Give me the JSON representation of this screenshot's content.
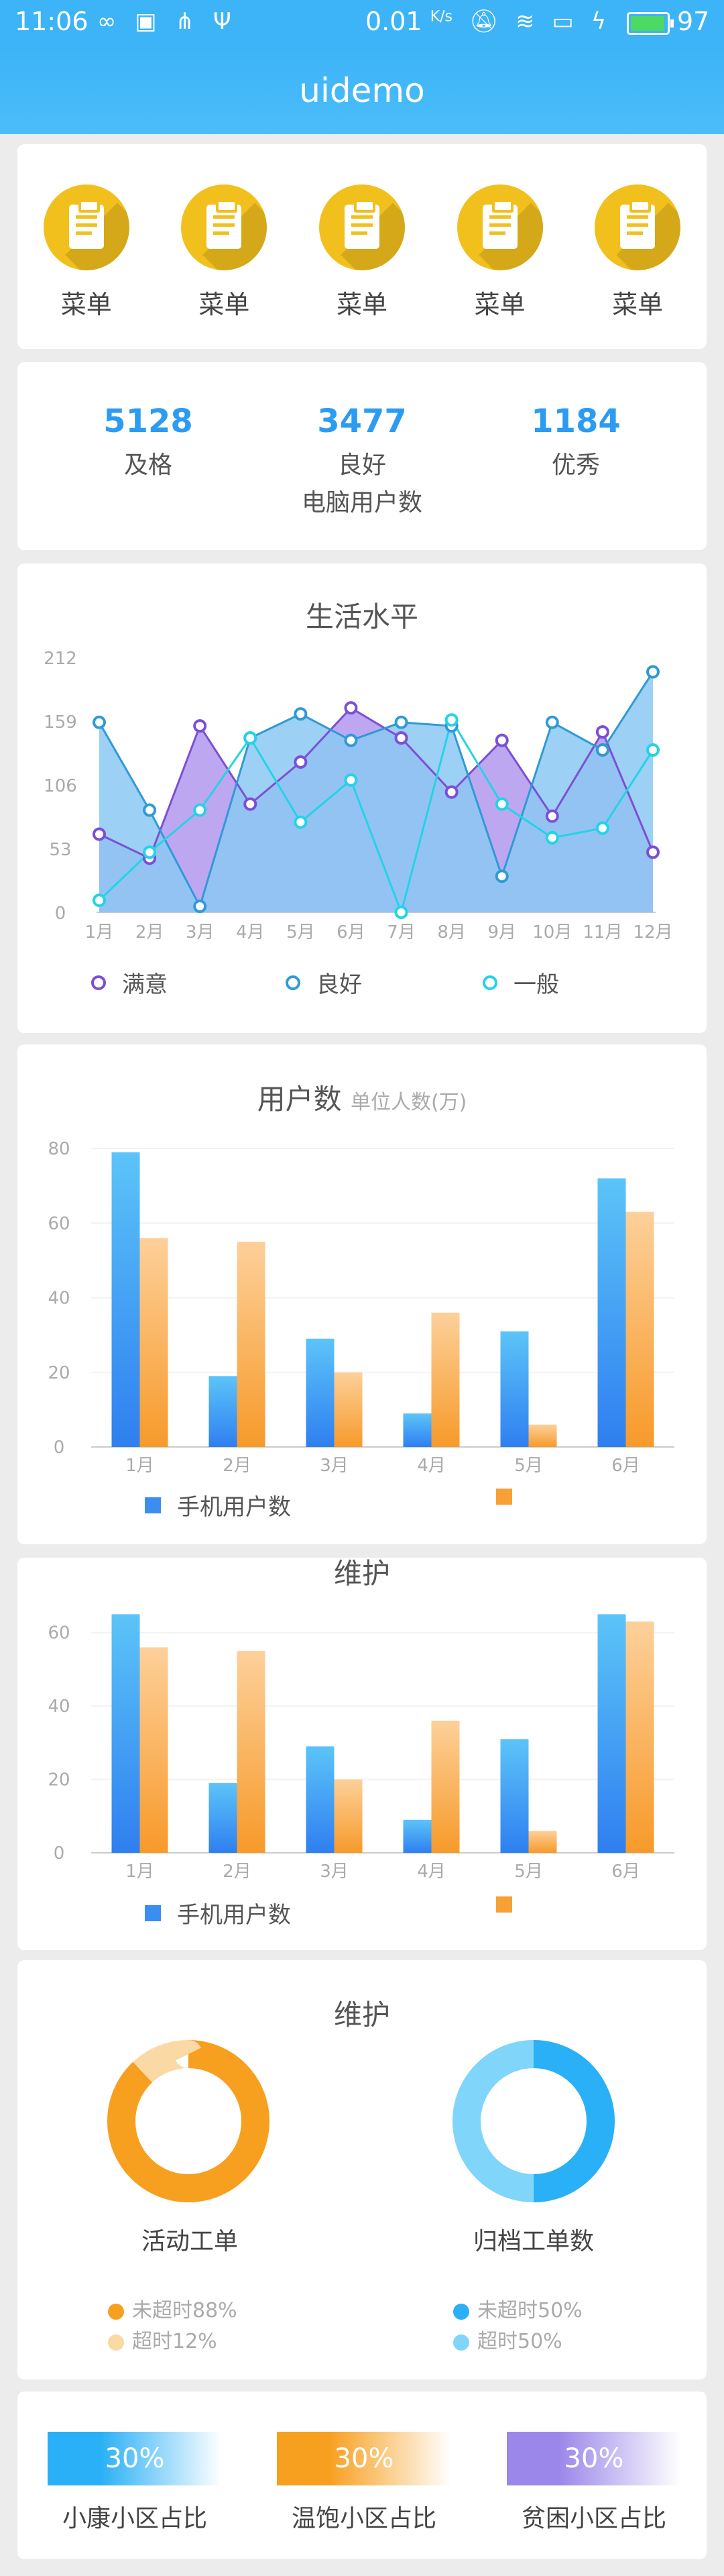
{
  "status_bar": {
    "time": "11:06",
    "speed": "0.01",
    "speed_unit": "K/s",
    "battery_level": "97",
    "battery_fraction": 0.97
  },
  "title": "uidemo",
  "menu": {
    "items": [
      {
        "label": "菜单",
        "icon": "clipboard-icon"
      },
      {
        "label": "菜单",
        "icon": "clipboard-icon"
      },
      {
        "label": "菜单",
        "icon": "clipboard-icon"
      },
      {
        "label": "菜单",
        "icon": "clipboard-icon"
      },
      {
        "label": "菜单",
        "icon": "clipboard-icon"
      }
    ]
  },
  "stats": {
    "items": [
      {
        "value": "5128",
        "label": "及格"
      },
      {
        "value": "3477",
        "label": "良好"
      },
      {
        "value": "1184",
        "label": "优秀"
      }
    ],
    "caption": "电脑用户数"
  },
  "chart_data": [
    {
      "type": "area",
      "title": "生活水平",
      "categories": [
        "1月",
        "2月",
        "3月",
        "4月",
        "5月",
        "6月",
        "7月",
        "8月",
        "9月",
        "10月",
        "11月",
        "12月"
      ],
      "y_ticks": [
        "0",
        "53",
        "106",
        "159",
        "212"
      ],
      "ylim": [
        0,
        212
      ],
      "series": [
        {
          "name": "满意",
          "color": "#7b4fd6",
          "fill": "#b79df0",
          "values": [
            65,
            45,
            155,
            90,
            125,
            170,
            145,
            100,
            143,
            80,
            150,
            50
          ]
        },
        {
          "name": "良好",
          "color": "#2f9ad6",
          "fill": "#8cc8f3",
          "values": [
            158,
            85,
            5,
            145,
            165,
            143,
            158,
            155,
            30,
            158,
            135,
            200
          ]
        },
        {
          "name": "一般",
          "color": "#23d3e6",
          "fill": "none",
          "values": [
            10,
            50,
            85,
            145,
            75,
            110,
            0,
            160,
            90,
            62,
            70,
            135
          ]
        }
      ]
    },
    {
      "type": "bar",
      "title": "用户数",
      "subtitle": "单位人数(万)",
      "categories": [
        "1月",
        "2月",
        "3月",
        "4月",
        "5月",
        "6月"
      ],
      "y_ticks": [
        "0",
        "20",
        "40",
        "60",
        "80"
      ],
      "ylim": [
        0,
        80
      ],
      "series": [
        {
          "name": "手机用户数",
          "color": "#3b8df0",
          "values": [
            79,
            19,
            29,
            9,
            31,
            72
          ]
        },
        {
          "name": "",
          "color": "#f7a035",
          "values": [
            56,
            55,
            20,
            36,
            6,
            63
          ]
        }
      ]
    },
    {
      "type": "bar",
      "title": "维护",
      "categories": [
        "1月",
        "2月",
        "3月",
        "4月",
        "5月",
        "6月"
      ],
      "y_ticks": [
        "0",
        "20",
        "40",
        "60"
      ],
      "ylim": [
        0,
        70
      ],
      "series": [
        {
          "name": "手机用户数",
          "color": "#3b8df0",
          "values": [
            65,
            19,
            29,
            9,
            31,
            65
          ]
        },
        {
          "name": "",
          "color": "#f7a035",
          "values": [
            56,
            55,
            20,
            36,
            6,
            63
          ]
        }
      ]
    },
    {
      "type": "pie",
      "title": "维护",
      "charts": [
        {
          "label": "活动工单",
          "slices": [
            {
              "name": "未超时88%",
              "value": 88,
              "color": "#f7a020"
            },
            {
              "name": "超时12%",
              "value": 12,
              "color": "#fbd9a5"
            }
          ]
        },
        {
          "label": "归档工单数",
          "slices": [
            {
              "name": "未超时50%",
              "value": 50,
              "color": "#29b0f6"
            },
            {
              "name": "超时50%",
              "value": 50,
              "color": "#7fd5fa"
            }
          ]
        }
      ]
    }
  ],
  "ratios": {
    "items": [
      {
        "percent": "30%",
        "label": "小康小区占比",
        "color": "#29b0f6"
      },
      {
        "percent": "30%",
        "label": "温饱小区占比",
        "color": "#f7a020"
      },
      {
        "percent": "30%",
        "label": "贫困小区占比",
        "color": "#9b87ea"
      }
    ]
  }
}
